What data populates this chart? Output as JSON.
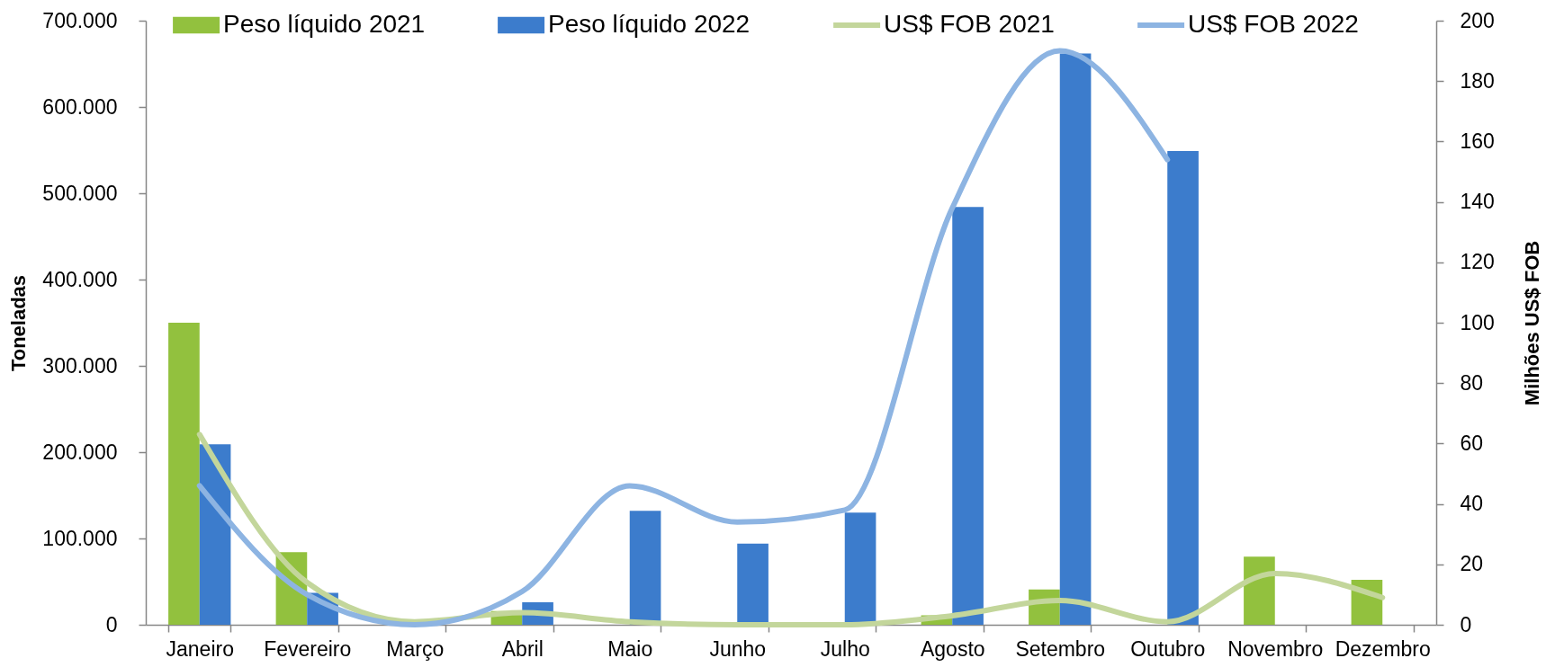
{
  "chart_data": {
    "type": "bar",
    "categories": [
      "Janeiro",
      "Fevereiro",
      "Março",
      "Abril",
      "Maio",
      "Junho",
      "Julho",
      "Agosto",
      "Setembro",
      "Outubro",
      "Novembro",
      "Dezembro"
    ],
    "series": [
      {
        "name": "Peso líquido 2021",
        "color": "#92c13e",
        "values": [
          350000,
          84000,
          null,
          16000,
          null,
          null,
          null,
          11000,
          41000,
          null,
          79000,
          52000
        ]
      },
      {
        "name": "Peso líquido 2022",
        "color": "#3c7ccc",
        "values": [
          209000,
          37000,
          null,
          26000,
          132000,
          94000,
          130000,
          484000,
          662000,
          549000,
          null,
          null
        ]
      },
      {
        "name": "US$ FOB 2021",
        "type": "line",
        "axis": "y2",
        "color": "#c3d69b",
        "values": [
          63,
          14,
          1,
          4,
          1,
          0,
          0,
          3,
          8,
          1,
          17,
          9
        ]
      },
      {
        "name": "US$ FOB 2022",
        "type": "line",
        "axis": "y2",
        "color": "#8db4e2",
        "values": [
          46,
          10,
          0,
          11,
          46,
          34,
          38,
          138,
          190,
          154,
          null,
          null
        ]
      }
    ],
    "ylabel": "Toneladas",
    "y2label": "Milhões US$ FOB",
    "ylim": [
      0,
      700000
    ],
    "yticks": [
      0,
      {
        "value": 100000,
        "label": "100.000"
      },
      {
        "value": 200000,
        "label": "200.000"
      },
      {
        "value": 300000,
        "label": "300.000"
      },
      {
        "value": 400000,
        "label": "400.000"
      },
      {
        "value": 500000,
        "label": "500.000"
      },
      {
        "value": 600000,
        "label": "600.000"
      },
      {
        "value": 700000,
        "label": "700.000"
      }
    ],
    "y2lim": [
      0,
      200
    ],
    "y2ticks": [
      0,
      20,
      40,
      60,
      80,
      100,
      120,
      140,
      160,
      180,
      200
    ],
    "legend": "top"
  }
}
